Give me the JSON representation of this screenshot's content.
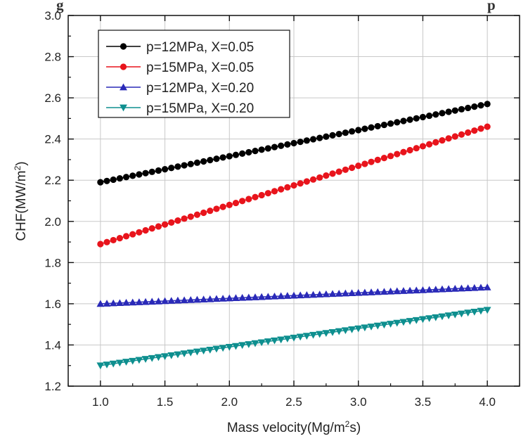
{
  "figure": {
    "caption_fragment": "g",
    "caption_fragment_2": "p"
  },
  "chart_data": {
    "type": "line",
    "xlabel": "Mass velocity(Mg/m",
    "xlabel_sup": "2",
    "xlabel_end": "s)",
    "ylabel": "CHF(MW/m",
    "ylabel_sup": "2",
    "ylabel_end": ")",
    "xlim": [
      0.75,
      4.25
    ],
    "ylim": [
      1.2,
      3.0
    ],
    "xticks": [
      1.0,
      1.5,
      2.0,
      2.5,
      3.0,
      3.5,
      4.0
    ],
    "xtick_labels": [
      "1.0",
      "1.5",
      "2.0",
      "2.5",
      "3.0",
      "3.5",
      "4.0"
    ],
    "yticks": [
      1.2,
      1.4,
      1.6,
      1.8,
      2.0,
      2.2,
      2.4,
      2.6,
      2.8,
      3.0
    ],
    "ytick_labels": [
      "1.2",
      "1.4",
      "1.6",
      "1.8",
      "2.0",
      "2.2",
      "2.4",
      "2.6",
      "2.8",
      "3.0"
    ],
    "grid": true,
    "legend_position": "top-left",
    "x_start": 1.0,
    "x_end": 4.0,
    "points_per_series": 61,
    "series": [
      {
        "name": "p=12MPa, X=0.05",
        "marker": "circle",
        "color": "#000000",
        "y_start": 2.19,
        "y_end": 2.57
      },
      {
        "name": "p=15MPa, X=0.05",
        "marker": "circle",
        "color": "#e8141c",
        "y_start": 1.89,
        "y_end": 2.46
      },
      {
        "name": "p=12MPa, X=0.20",
        "marker": "triangle-up",
        "color": "#2a2ab8",
        "y_start": 1.6,
        "y_end": 1.68
      },
      {
        "name": "p=15MPa, X=0.20",
        "marker": "triangle-down",
        "color": "#0e8f8f",
        "y_start": 1.3,
        "y_end": 1.57
      }
    ]
  }
}
